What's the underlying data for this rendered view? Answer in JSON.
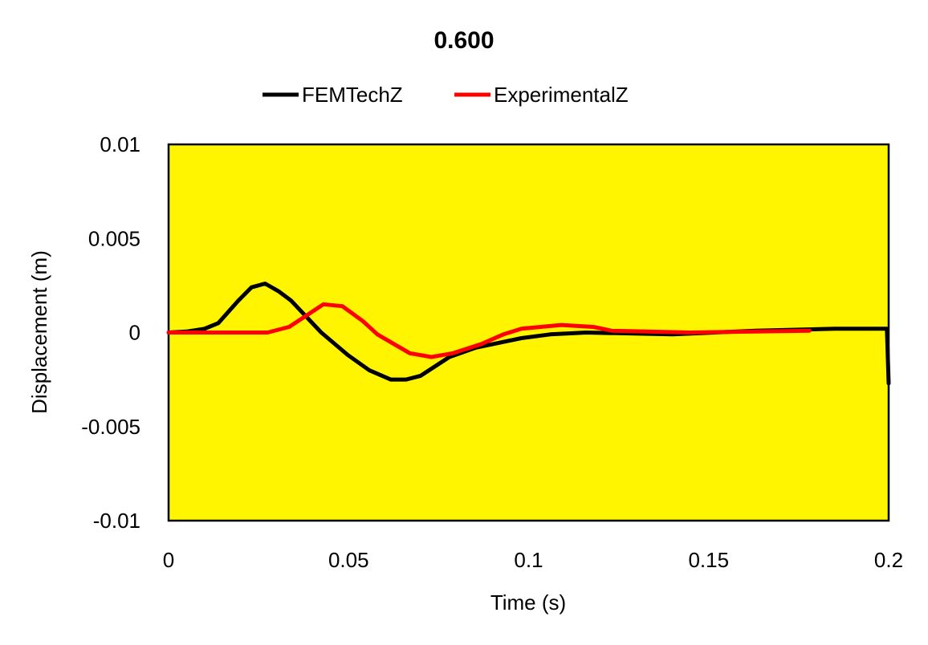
{
  "chart_data": {
    "type": "line",
    "title": "0.600",
    "xlabel": "Time (s)",
    "ylabel": "Displacement (m)",
    "xlim": [
      0,
      0.2
    ],
    "ylim": [
      -0.01,
      0.01
    ],
    "xticks": [
      "0",
      "0.05",
      "0.1",
      "0.15",
      "0.2"
    ],
    "xtick_values": [
      0,
      0.05,
      0.1,
      0.15,
      0.2
    ],
    "yticks": [
      "0.01",
      "0.005",
      "0",
      "-0.005",
      "-0.01"
    ],
    "ytick_values": [
      0.01,
      0.005,
      0,
      -0.005,
      -0.01
    ],
    "grid": false,
    "legend_position": "top",
    "plot_background": "#FFF500",
    "series": [
      {
        "name": "FEMTechZ",
        "color": "#000000",
        "x": [
          0,
          0.005,
          0.01,
          0.0138,
          0.0194,
          0.023,
          0.0268,
          0.0305,
          0.034,
          0.0424,
          0.0498,
          0.0557,
          0.0617,
          0.066,
          0.07,
          0.078,
          0.0854,
          0.093,
          0.098,
          0.106,
          0.116,
          0.14,
          0.163,
          0.185,
          0.1995,
          0.2
        ],
        "y": [
          0,
          5e-05,
          0.0002,
          0.0005,
          0.0017,
          0.0024,
          0.0026,
          0.0022,
          0.0017,
          0,
          -0.0012,
          -0.002,
          -0.0025,
          -0.0025,
          -0.0023,
          -0.0013,
          -0.0008,
          -0.0005,
          -0.0003,
          -0.0001,
          0,
          -0.0001,
          0.0001,
          0.0002,
          0.0002,
          -0.0027
        ]
      },
      {
        "name": "ExperimentalZ",
        "color": "#FF0000",
        "x": [
          0,
          0.0275,
          0.0335,
          0.043,
          0.0483,
          0.054,
          0.058,
          0.067,
          0.073,
          0.079,
          0.087,
          0.093,
          0.098,
          0.109,
          0.118,
          0.123,
          0.145,
          0.178
        ],
        "y": [
          0,
          0,
          0.0003,
          0.0015,
          0.0014,
          0.0006,
          -0.0001,
          -0.0011,
          -0.0013,
          -0.0011,
          -0.0006,
          -0.0001,
          0.0002,
          0.0004,
          0.0003,
          0.0001,
          0,
          0.0001
        ]
      }
    ]
  }
}
